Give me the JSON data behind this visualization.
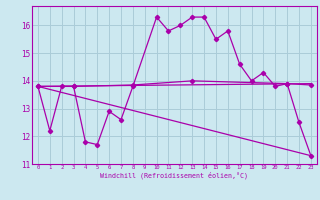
{
  "xlabel": "Windchill (Refroidissement éolien,°C)",
  "background_color": "#cce8f0",
  "grid_color": "#aaccd8",
  "line_color": "#aa00aa",
  "xlim": [
    -0.5,
    23.5
  ],
  "ylim": [
    11.0,
    16.7
  ],
  "yticks": [
    11,
    12,
    13,
    14,
    15,
    16
  ],
  "xticks": [
    0,
    1,
    2,
    3,
    4,
    5,
    6,
    7,
    8,
    9,
    10,
    11,
    12,
    13,
    14,
    15,
    16,
    17,
    18,
    19,
    20,
    21,
    22,
    23
  ],
  "series": [
    {
      "x": [
        0,
        1,
        2,
        3,
        4,
        5,
        6,
        7,
        8,
        10,
        11,
        12,
        13,
        14,
        15,
        16,
        17,
        18,
        19,
        20,
        21,
        22,
        23
      ],
      "y": [
        13.8,
        12.2,
        13.8,
        13.8,
        11.8,
        11.7,
        12.9,
        12.6,
        13.8,
        16.3,
        15.8,
        16.0,
        16.3,
        16.3,
        15.5,
        15.8,
        14.6,
        14.0,
        14.3,
        13.8,
        13.9,
        12.5,
        11.3
      ]
    },
    {
      "x": [
        0,
        3,
        8,
        13,
        21,
        23
      ],
      "y": [
        13.8,
        13.8,
        13.85,
        14.0,
        13.9,
        13.85
      ]
    },
    {
      "x": [
        0,
        23
      ],
      "y": [
        13.8,
        13.9
      ]
    },
    {
      "x": [
        0,
        23
      ],
      "y": [
        13.8,
        11.3
      ]
    }
  ]
}
